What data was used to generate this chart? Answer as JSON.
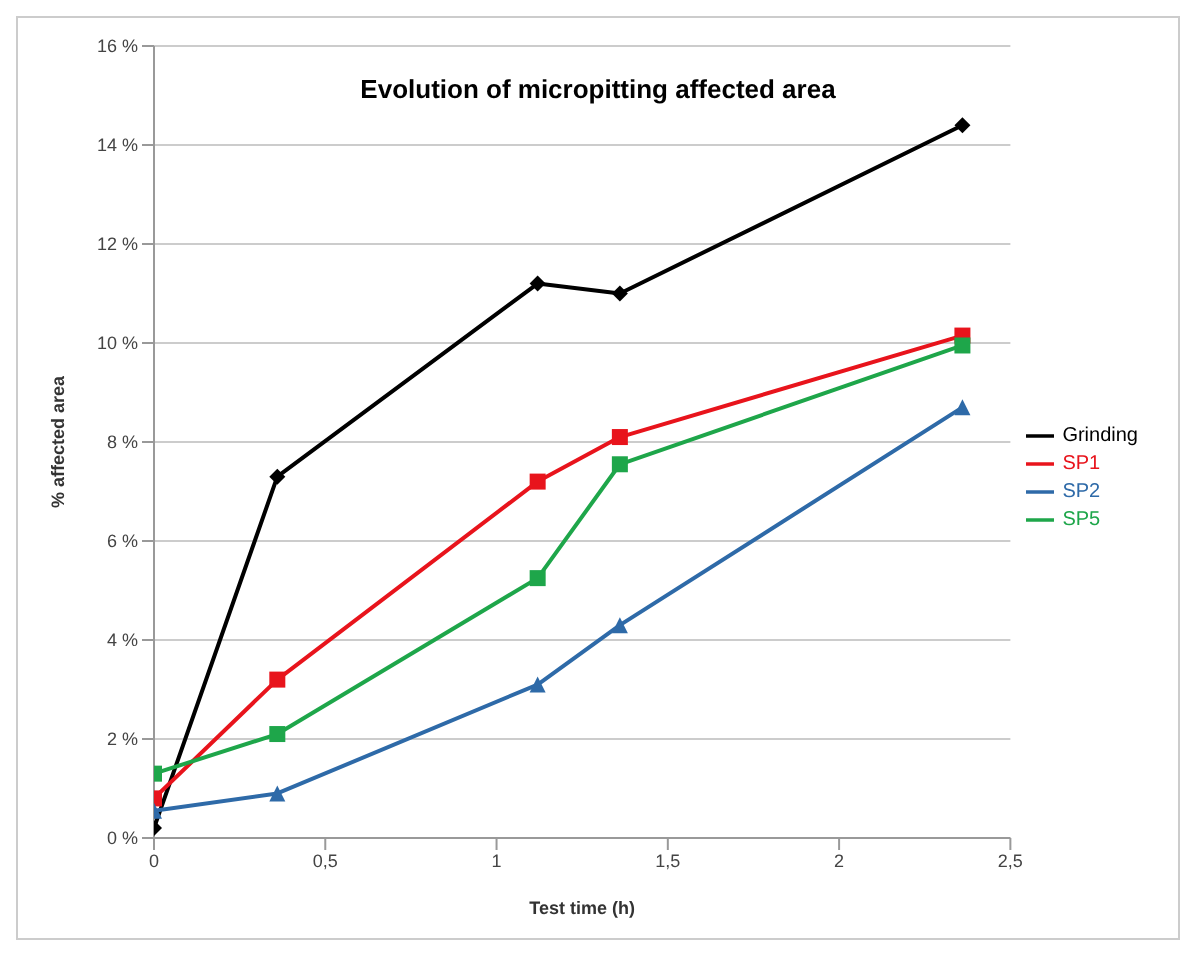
{
  "chart_data": {
    "type": "line",
    "title": "Evolution of micropitting affected area",
    "xlabel": "Test time (h)",
    "ylabel": "% affected area",
    "x": [
      0,
      0.36,
      1.12,
      1.36,
      2.36
    ],
    "series": [
      {
        "name": "Grinding",
        "color": "#000000",
        "marker": "diamond",
        "values": [
          0.2,
          7.3,
          11.2,
          11.0,
          14.4
        ]
      },
      {
        "name": "SP1",
        "color": "#e8141c",
        "marker": "square",
        "values": [
          0.8,
          3.2,
          7.2,
          8.1,
          10.15
        ]
      },
      {
        "name": "SP2",
        "color": "#2e6aa8",
        "marker": "triangle",
        "values": [
          0.55,
          0.9,
          3.1,
          4.3,
          8.7
        ]
      },
      {
        "name": "SP5",
        "color": "#1ea64a",
        "marker": "square",
        "values": [
          1.3,
          2.1,
          5.25,
          7.55,
          9.95
        ]
      }
    ],
    "xlim": [
      0,
      2.5
    ],
    "xticks": [
      0,
      {
        "value": 0.5,
        "label": "0,5"
      },
      1,
      {
        "value": 1.5,
        "label": "1,5"
      },
      2,
      {
        "value": 2.5,
        "label": "2,5"
      }
    ],
    "ylim": [
      0,
      16
    ],
    "yticks": [
      {
        "value": 0,
        "label": "0 %"
      },
      {
        "value": 2,
        "label": "2 %"
      },
      {
        "value": 4,
        "label": "4 %"
      },
      {
        "value": 6,
        "label": "6 %"
      },
      {
        "value": 8,
        "label": "8 %"
      },
      {
        "value": 10,
        "label": "10 %"
      },
      {
        "value": 12,
        "label": "12 %"
      },
      {
        "value": 14,
        "label": "14 %"
      },
      {
        "value": 16,
        "label": "16 %"
      }
    ],
    "grid": "y",
    "legend": "right"
  }
}
